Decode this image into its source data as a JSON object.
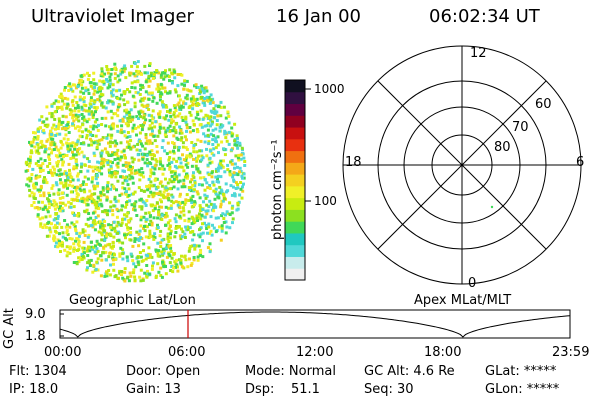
{
  "header": {
    "instrument": "Ultraviolet Imager",
    "date": "16 Jan 00",
    "time": "06:02:34 UT"
  },
  "colorbar": {
    "unit_label": "photon cm⁻²s⁻¹",
    "ticks": [
      "1000",
      "100"
    ],
    "colors": [
      "#f0f0f0",
      "#c8ecec",
      "#50d8d8",
      "#20c8c0",
      "#40d858",
      "#8ce020",
      "#c8ec10",
      "#f0f028",
      "#f4d020",
      "#f4a818",
      "#f07010",
      "#e83010",
      "#c81010",
      "#900020",
      "#600040",
      "#301040",
      "#101020"
    ]
  },
  "polar_plot": {
    "hour_labels": {
      "top": "12",
      "left": "18",
      "right": "6",
      "bottom": "0"
    },
    "lat_labels": [
      "80",
      "70",
      "60"
    ]
  },
  "timeline": {
    "left_label": "Geographic Lat/Lon",
    "right_label": "Apex MLat/MLT",
    "axis_title": "GC Alt",
    "y_ticks": [
      "9.0",
      "1.8"
    ],
    "x_ticks": [
      "00:00",
      "06:00",
      "12:00",
      "18:00",
      "23:59"
    ],
    "marker_time": "06:02",
    "marker_color": "#cc0000"
  },
  "status": {
    "flt": "Flt: 1304",
    "ip": "IP: 18.0",
    "door": "Door: Open",
    "gain": "Gain: 13",
    "mode": "Mode: Normal",
    "dsp": "Dsp:    51.1",
    "gc_alt": "GC Alt: 4.6 Re",
    "seq": "Seq: 30",
    "glat": "GLat: *****",
    "glon": "GLon: *****"
  }
}
